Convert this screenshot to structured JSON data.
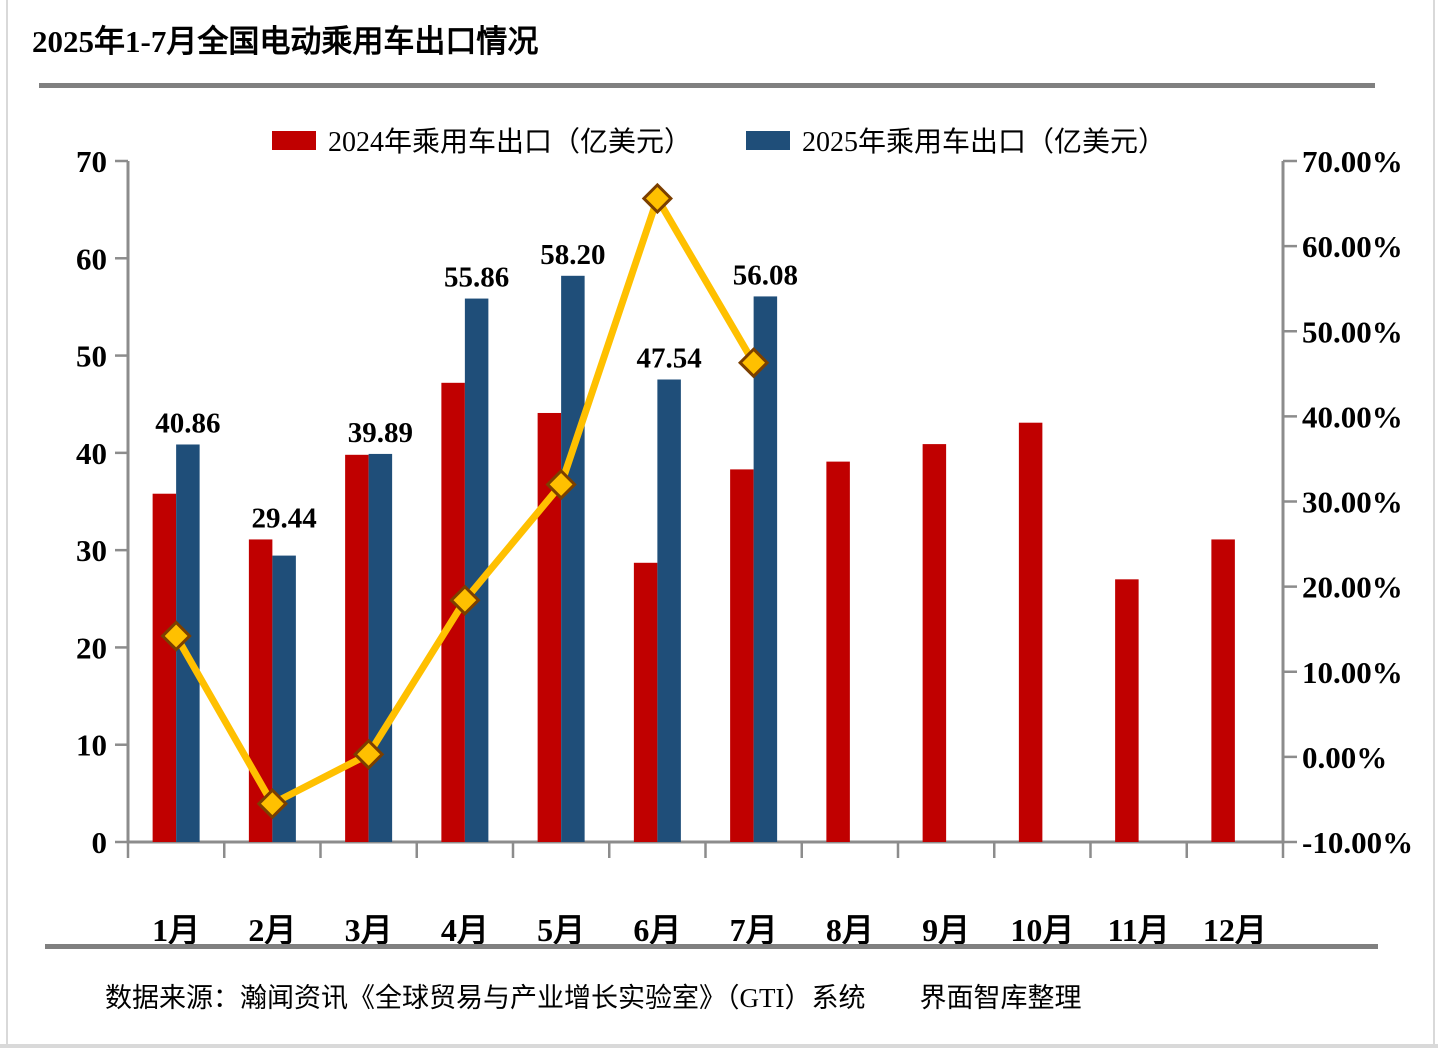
{
  "page": {
    "title": "2025年1-7月全国电动乘用车出口情况",
    "source_note": "数据来源：瀚闻资讯《全球贸易与产业增长实验室》（GTI）系统　　界面智库整理"
  },
  "legend": [
    {
      "label": "2024年乘用车出口（亿美元）",
      "color": "#C00000"
    },
    {
      "label": "2025年乘用车出口（亿美元）",
      "color": "#1F4E79"
    }
  ],
  "colors": {
    "bar_2024": "#C00000",
    "bar_2025": "#1F4E79",
    "growth_line": "#FFC000",
    "marker_border": "#7B3F00",
    "axis": "#8C8C8C",
    "rule_dark": "#808080",
    "rule_light": "#D9D9D9"
  },
  "chart_data": {
    "type": "bar",
    "subtype": "grouped-bars-with-growth-line",
    "title": "2025年1-7月全国电动乘用车出口情况",
    "categories": [
      "1月",
      "2月",
      "3月",
      "4月",
      "5月",
      "6月",
      "7月",
      "8月",
      "9月",
      "10月",
      "11月",
      "12月"
    ],
    "series": [
      {
        "name": "2024年乘用车出口（亿美元）",
        "type": "bar",
        "axis": "left",
        "color": "#C00000",
        "values": [
          35.8,
          31.1,
          39.8,
          47.2,
          44.1,
          28.7,
          38.3,
          39.1,
          40.9,
          43.1,
          27.0,
          31.1
        ]
      },
      {
        "name": "2025年乘用车出口（亿美元）",
        "type": "bar",
        "axis": "left",
        "color": "#1F4E79",
        "values": [
          40.86,
          29.44,
          39.89,
          55.86,
          58.2,
          47.54,
          56.08,
          null,
          null,
          null,
          null,
          null
        ],
        "data_labels": [
          "40.86",
          "29.44",
          "39.89",
          "55.86",
          "58.20",
          "47.54",
          "56.08"
        ]
      },
      {
        "name": "growth-line",
        "type": "line",
        "axis": "right",
        "color": "#FFC000",
        "marker": "diamond",
        "marker_border": "#7B3F00",
        "values": [
          14.2,
          -5.5,
          0.3,
          18.4,
          32.0,
          65.6,
          46.3,
          null,
          null,
          null,
          null,
          null
        ]
      }
    ],
    "left_axis": {
      "min": 0,
      "max": 70,
      "tick_step": 10,
      "tick_labels": [
        "0",
        "10",
        "20",
        "30",
        "40",
        "50",
        "60",
        "70"
      ]
    },
    "right_axis": {
      "min": -10,
      "max": 70,
      "tick_step": 10,
      "tick_labels": [
        "-10.00%",
        "0.00%",
        "10.00%",
        "20.00%",
        "30.00%",
        "40.00%",
        "50.00%",
        "60.00%",
        "70.00%"
      ]
    },
    "legend_position": "top",
    "grid": false
  }
}
